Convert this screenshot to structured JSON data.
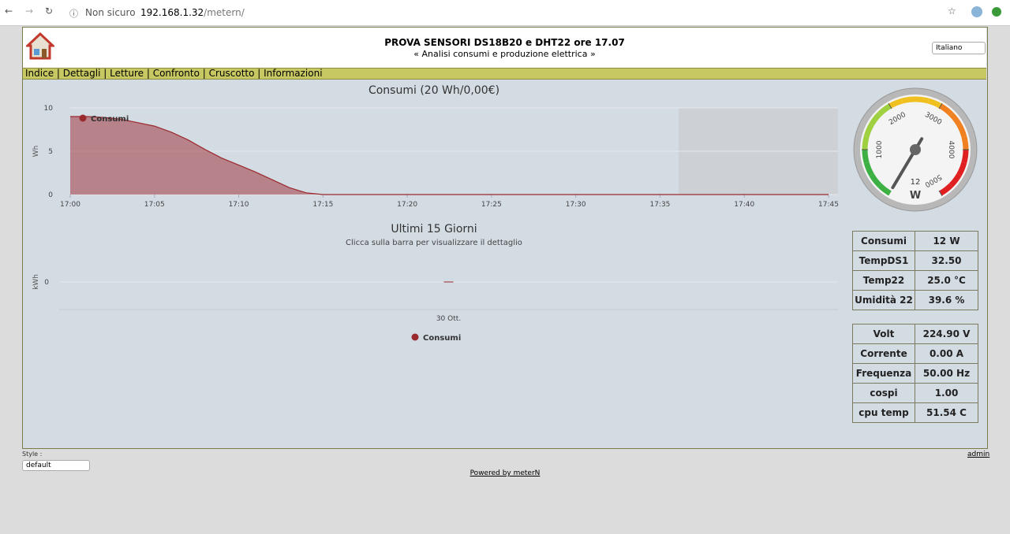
{
  "browser": {
    "security": "Non sicuro",
    "url_host": "192.168.1.32",
    "url_path": "/metern/"
  },
  "header": {
    "title": "PROVA SENSORI DS18B20 e DHT22 ore 17.07",
    "subtitle": "« Analisi consumi e produzione elettrica »",
    "language": "Italiano"
  },
  "nav": [
    "Indice",
    "Dettagli",
    "Letture",
    "Confronto",
    "Cruscotto",
    "Informazioni"
  ],
  "area_chart": {
    "type": "area",
    "title": "Consumi (20 Wh/0,00€)",
    "y_label": "Wh",
    "series": [
      {
        "name": "Consumi",
        "color": "#9b2a2f",
        "x": [
          0,
          1,
          2,
          3,
          4,
          5,
          6,
          7,
          8,
          9,
          10,
          11,
          12,
          13,
          14,
          15,
          45
        ],
        "values": [
          9,
          9,
          8.9,
          8.7,
          8.3,
          7.9,
          7.2,
          6.3,
          5.2,
          4.2,
          3.4,
          2.6,
          1.7,
          0.8,
          0.2,
          0,
          0
        ]
      }
    ],
    "xlim": [
      0,
      45
    ],
    "xticks": [
      {
        "value": 0,
        "label": "17:00"
      },
      {
        "value": 5,
        "label": "17:05"
      },
      {
        "value": 10,
        "label": "17:10"
      },
      {
        "value": 15,
        "label": "17:15"
      },
      {
        "value": 20,
        "label": "17:20"
      },
      {
        "value": 25,
        "label": "17:25"
      },
      {
        "value": 30,
        "label": "17:30"
      },
      {
        "value": 35,
        "label": "17:35"
      },
      {
        "value": 40,
        "label": "17:40"
      },
      {
        "value": 45,
        "label": "17:45"
      }
    ],
    "ylim": [
      0,
      10
    ],
    "yticks": [
      0,
      5,
      10
    ],
    "grid": true
  },
  "bar_chart": {
    "type": "bar",
    "title": "Ultimi 15 Giorni",
    "subtitle": "Clicca sulla barra per visualizzare il dettaglio",
    "y_label": "kWh",
    "categories": [
      "30 Ott."
    ],
    "series": [
      {
        "name": "Consumi",
        "color": "#9b2a2f",
        "values": [
          0
        ]
      }
    ],
    "ylim": [
      0,
      1
    ],
    "yticks": [
      0
    ]
  },
  "gauge": {
    "type": "gauge",
    "value": 12,
    "unit": "W",
    "min": 0,
    "max": 5000,
    "ticks": [
      1000,
      2000,
      3000,
      4000,
      5000
    ]
  },
  "readings": [
    [
      [
        "Consumi",
        "12 W"
      ],
      [
        "TempDS1",
        "32.50"
      ],
      [
        "Temp22",
        "25.0 °C"
      ],
      [
        "Umidità 22",
        "39.6 %"
      ]
    ],
    [
      [
        "Volt",
        "224.90 V"
      ],
      [
        "Corrente",
        "0.00 A"
      ],
      [
        "Frequenza",
        "50.00 Hz"
      ],
      [
        "cospi",
        "1.00"
      ],
      [
        "cpu temp",
        "51.54 C"
      ]
    ]
  ],
  "footer": {
    "style_label": "Style :",
    "style_value": "default",
    "admin": "admin",
    "powered": "Powered by meterN"
  }
}
